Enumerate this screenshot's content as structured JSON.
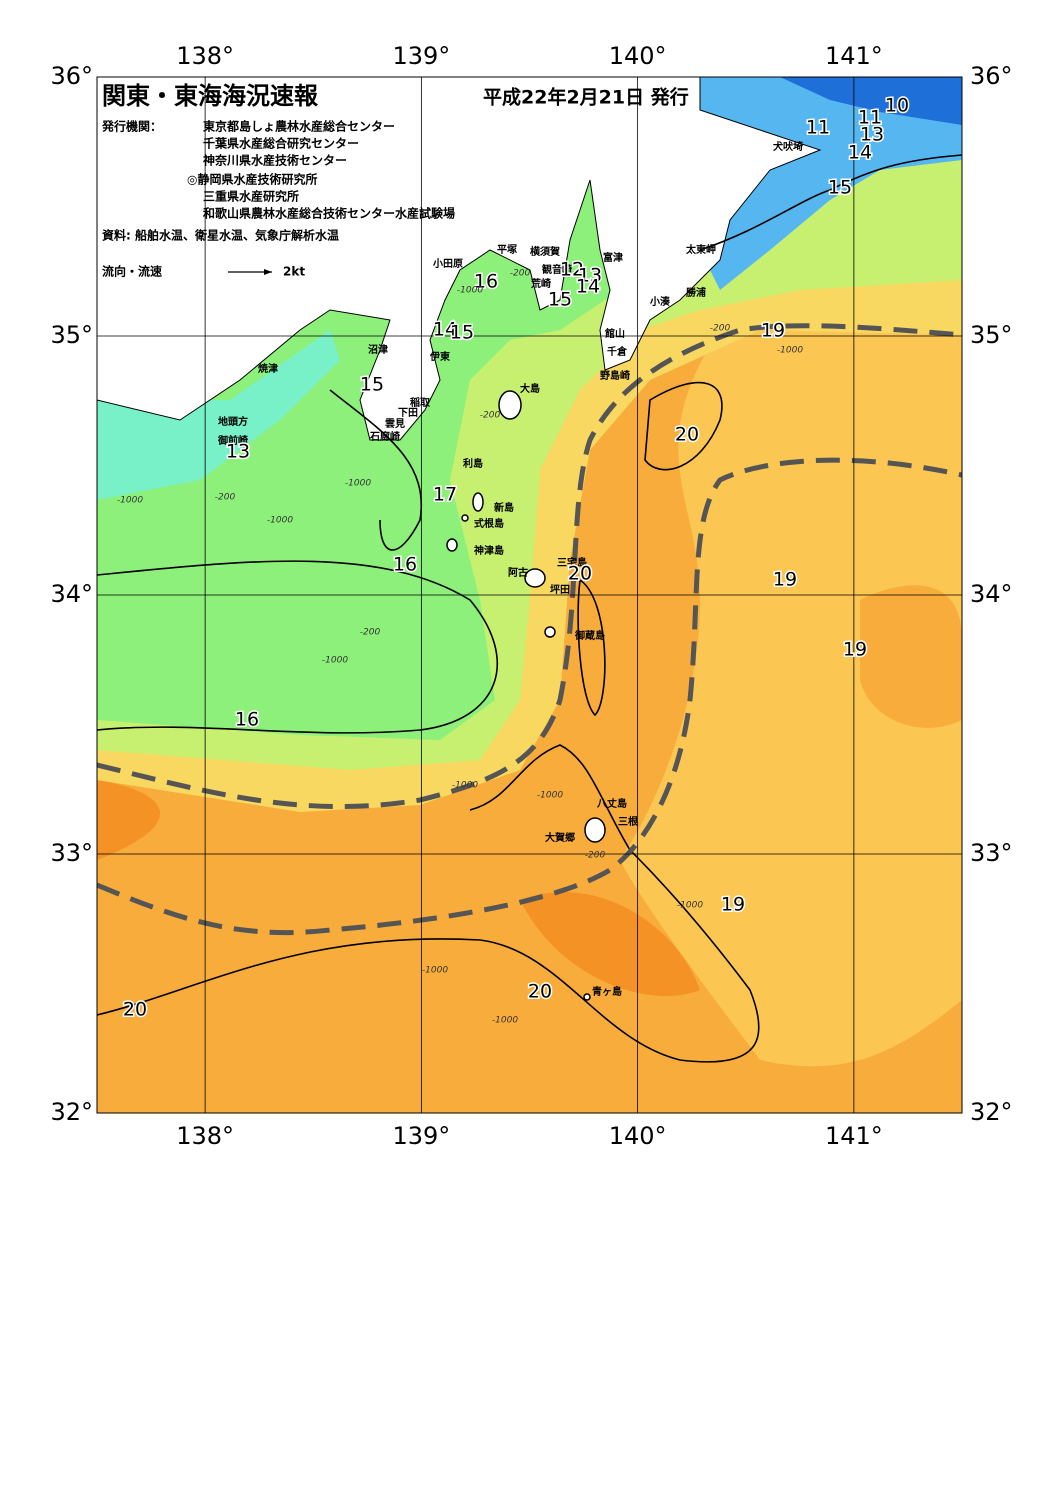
{
  "header": {
    "title": "関東・東海海況速報",
    "date": "平成22年2月21日 発行",
    "issuer_label": "発行機関：",
    "issuers": [
      "東京都島しょ農林水産総合センター",
      "千葉県水産総合研究センター",
      "神奈川県水産技術センター",
      "◎静岡県水産技術研究所",
      "三重県水産研究所",
      "和歌山県農林水産総合技術センター水産試験場"
    ],
    "source": "資料: 船舶水温、衛星水温、気象庁解析水温",
    "legend_label": "流向・流速",
    "legend_speed": "2kt"
  },
  "axes": {
    "lon_ticks": [
      {
        "value": 138,
        "label": "138°"
      },
      {
        "value": 139,
        "label": "139°"
      },
      {
        "value": 140,
        "label": "140°"
      },
      {
        "value": 141,
        "label": "141°"
      }
    ],
    "lat_ticks": [
      {
        "value": 32,
        "label": "32°"
      },
      {
        "value": 33,
        "label": "33°"
      },
      {
        "value": 34,
        "label": "34°"
      },
      {
        "value": 35,
        "label": "35°"
      },
      {
        "value": 36,
        "label": "36°"
      }
    ],
    "lon_range": [
      137.5,
      141.5
    ],
    "lat_range": [
      32,
      36
    ]
  },
  "place_names": [
    "犬吠埼",
    "太東岬",
    "勝浦",
    "小湊",
    "富津",
    "横須賀",
    "平塚",
    "小田原",
    "観音崎",
    "荒崎",
    "館山",
    "千倉",
    "野島崎",
    "沼津",
    "伊東",
    "焼津",
    "稲取",
    "下田",
    "雲見",
    "石廊崎",
    "地頭方",
    "御前崎",
    "大島",
    "利島",
    "新島",
    "式根島",
    "神津島",
    "三宅島",
    "阿古",
    "坪田",
    "御蔵島",
    "八丈島",
    "三根",
    "大賀郷",
    "青ヶ島"
  ],
  "contour_labels": [
    10,
    11,
    11,
    13,
    14,
    15,
    12,
    13,
    14,
    15,
    16,
    14,
    15,
    15,
    13,
    17,
    16,
    20,
    20,
    19,
    19,
    19,
    16,
    19,
    20,
    20
  ],
  "depth_labels": [
    -1000,
    -200,
    -1000,
    -1000,
    -1000,
    -200,
    -200,
    -1000,
    -200,
    -200,
    -1000,
    -1000,
    -1000,
    -1000,
    -1000,
    -1000,
    -200
  ]
}
